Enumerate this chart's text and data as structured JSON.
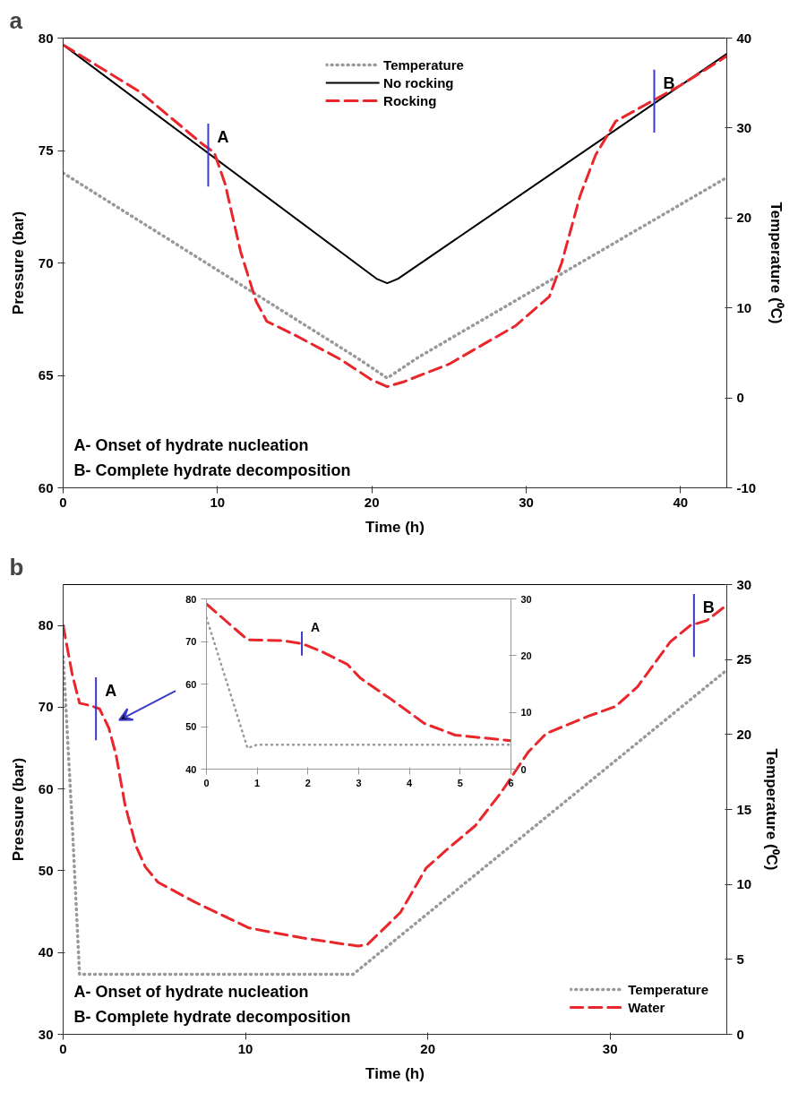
{
  "chart_data": [
    {
      "type": "line",
      "title": "a",
      "xlabel": "Time (h)",
      "ylabel": "Pressure (bar)",
      "y2label": "Temperature (⁰C)",
      "xlim": [
        0,
        43
      ],
      "xticks": [
        0,
        10,
        20,
        30,
        40
      ],
      "ylim": [
        60,
        80
      ],
      "yticks": [
        60,
        65,
        70,
        75,
        80
      ],
      "y2lim": [
        -10,
        40
      ],
      "y2ticks": [
        -10,
        0,
        10,
        20,
        30,
        40
      ],
      "grid": false,
      "legend": "top",
      "series": [
        {
          "name": "Temperature",
          "color": "#999999",
          "line_style": "dotted",
          "axis": "y2",
          "x": [
            0,
            19,
            21,
            23,
            43
          ],
          "values": [
            25,
            4.5,
            2.2,
            4.5,
            24.5
          ]
        },
        {
          "name": "No rocking",
          "color": "#000000",
          "line_style": "solid",
          "x": [
            0,
            20.3,
            21,
            21.7,
            43
          ],
          "values": [
            79.7,
            69.3,
            69.1,
            69.3,
            79.3
          ]
        },
        {
          "name": "Rocking",
          "color": "#e8262b",
          "line_style": "dashed",
          "x": [
            0,
            5,
            9,
            9.8,
            10.5,
            11.5,
            12.5,
            13.2,
            15,
            18,
            20,
            21,
            22,
            25,
            29.3,
            31.5,
            32.3,
            33.5,
            34.5,
            35.8,
            37.9,
            40,
            43
          ],
          "values": [
            79.7,
            77.6,
            75.3,
            74.9,
            73.5,
            70.5,
            68.3,
            67.4,
            66.8,
            65.7,
            64.8,
            64.5,
            64.7,
            65.5,
            67.2,
            68.5,
            70,
            73,
            74.8,
            76.3,
            77.1,
            77.9,
            79.2
          ]
        }
      ],
      "annotations": [
        {
          "text": "A",
          "x": 9.4,
          "y": 74.8
        },
        {
          "text": "B",
          "x": 38.3,
          "y": 77.2
        },
        "A- Onset of hydrate nucleation",
        "B- Complete hydrate decomposition"
      ]
    },
    {
      "type": "line",
      "title": "b",
      "xlabel": "Time (h)",
      "ylabel": "Pressure (bar)",
      "y2label": "Temperature (⁰C)",
      "xlim": [
        0,
        36.4
      ],
      "xticks": [
        0,
        10,
        20,
        30
      ],
      "ylim": [
        30,
        85
      ],
      "yticks": [
        30,
        40,
        50,
        60,
        70,
        80
      ],
      "y2lim": [
        0,
        30
      ],
      "y2ticks": [
        0,
        5,
        10,
        15,
        20,
        25,
        30
      ],
      "grid": false,
      "legend": "bottom right",
      "series": [
        {
          "name": "Temperature",
          "color": "#999999",
          "line_style": "dotted",
          "axis": "y2",
          "x": [
            0,
            0.5,
            0.9,
            15.9,
            36.4
          ],
          "values": [
            25.2,
            14,
            4,
            4,
            24.3
          ]
        },
        {
          "name": "Water",
          "color": "#e8262b",
          "line_style": "dashed",
          "x": [
            0,
            0.1,
            0.5,
            0.9,
            1.5,
            2,
            2.5,
            2.9,
            3.4,
            4,
            4.5,
            5.2,
            7.2,
            10.2,
            13.1,
            15.5,
            16.2,
            16.7,
            18.5,
            19.9,
            21,
            22.6,
            24,
            25.5,
            26.5,
            28.8,
            30.3,
            31.5,
            33.3,
            34.4,
            35.3,
            36.4
          ],
          "values": [
            80,
            78.8,
            74,
            70.5,
            70.2,
            69.8,
            67.5,
            64.2,
            58,
            53,
            50.5,
            48.6,
            46.2,
            43,
            41.8,
            41,
            40.8,
            41,
            44.9,
            50.3,
            52.5,
            55.5,
            59.5,
            64.5,
            66.8,
            68.9,
            70.1,
            72.5,
            78,
            80,
            80.6,
            82.5
          ]
        }
      ],
      "annotations": [
        {
          "text": "A",
          "x": 1.8,
          "y": 69.8
        },
        {
          "text": "B",
          "x": 34.6,
          "y": 80
        },
        "A- Onset of hydrate nucleation",
        "B- Complete hydrate decomposition"
      ]
    },
    {
      "type": "line",
      "xlim": [
        0,
        6
      ],
      "xticks": [
        0,
        1,
        2,
        3,
        4,
        5,
        6
      ],
      "ylim": [
        40,
        80
      ],
      "yticks": [
        40,
        50,
        60,
        70,
        80
      ],
      "y2lim": [
        0,
        30
      ],
      "y2ticks": [
        0,
        10,
        20,
        30
      ],
      "grid": false,
      "series": [
        {
          "color": "#999999",
          "line_style": "dotted",
          "axis": "y2",
          "x": [
            0,
            0.81,
            1,
            6
          ],
          "values": [
            26.7,
            3.7,
            4.3,
            4.3
          ]
        },
        {
          "color": "#e8262b",
          "line_style": "dashed",
          "x": [
            0,
            0.81,
            1.5,
            1.88,
            2.26,
            2.78,
            3.03,
            3.63,
            4.3,
            4.9,
            6
          ],
          "values": [
            78.8,
            70.4,
            70.2,
            69.5,
            67.7,
            64.6,
            61.4,
            56.5,
            50.7,
            48,
            46.7
          ]
        }
      ],
      "annotations": [
        {
          "text": "A",
          "x": 1.88,
          "y": 69.5
        }
      ]
    }
  ]
}
